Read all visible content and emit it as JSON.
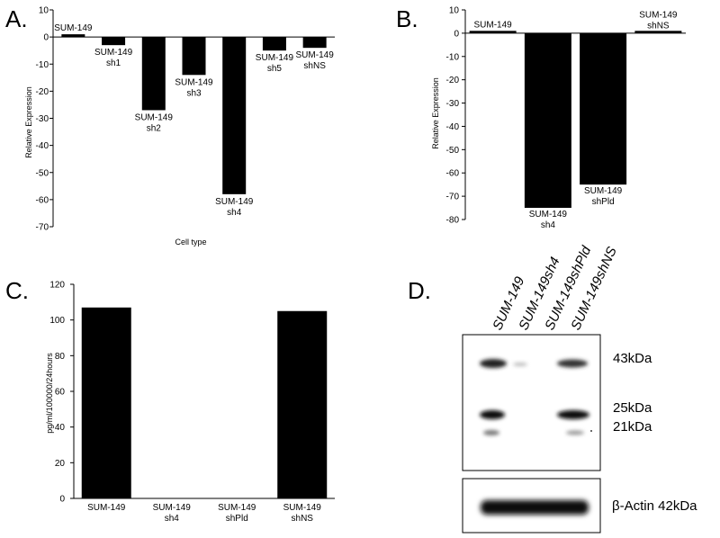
{
  "chart_data": [
    {
      "panel": "A.",
      "type": "bar",
      "categories": [
        "SUM-149",
        "SUM-149 sh1",
        "SUM-149 sh2",
        "SUM-149 sh3",
        "SUM-149 sh4",
        "SUM-149 sh5",
        "SUM-149 shNS"
      ],
      "category_lines": [
        [
          "SUM-149"
        ],
        [
          "SUM-149",
          "sh1"
        ],
        [
          "SUM-149",
          "sh2"
        ],
        [
          "SUM-149",
          "sh3"
        ],
        [
          "SUM-149",
          "sh4"
        ],
        [
          "SUM-149",
          "sh5"
        ],
        [
          "SUM-149",
          "shNS"
        ]
      ],
      "values": [
        1,
        -3,
        -27,
        -14,
        -58,
        -5,
        -4
      ],
      "ylim": [
        -70,
        10
      ],
      "yticks": [
        10,
        0,
        -10,
        -20,
        -30,
        -40,
        -50,
        -60,
        -70
      ],
      "xlabel": "Cell type",
      "ylabel": "Relative Expression"
    },
    {
      "panel": "B.",
      "type": "bar",
      "categories": [
        "SUM-149",
        "SUM-149 sh4",
        "SUM-149 shPld",
        "SUM-149 shNS"
      ],
      "category_lines": [
        [
          "SUM-149"
        ],
        [
          "SUM-149",
          "sh4"
        ],
        [
          "SUM-149",
          "shPld"
        ],
        [
          "SUM-149",
          "shNS"
        ]
      ],
      "values": [
        1,
        -75,
        -65,
        1
      ],
      "ylim": [
        -80,
        10
      ],
      "yticks": [
        10,
        0,
        -10,
        -20,
        -30,
        -40,
        -50,
        -60,
        -70,
        -80
      ],
      "xlabel": "",
      "ylabel": "Relative Expression"
    },
    {
      "panel": "C.",
      "type": "bar",
      "categories": [
        "SUM-149",
        "SUM-149 sh4",
        "SUM-149 shPld",
        "SUM-149 shNS"
      ],
      "category_lines": [
        [
          "SUM-149"
        ],
        [
          "SUM-149",
          "sh4"
        ],
        [
          "SUM-149",
          "shPld"
        ],
        [
          "SUM-149",
          "shNS"
        ]
      ],
      "values": [
        107,
        0,
        0,
        105
      ],
      "ylim": [
        0,
        120
      ],
      "yticks": [
        0,
        20,
        40,
        60,
        80,
        100,
        120
      ],
      "xlabel": "",
      "ylabel": "pg/ml/100000/24hours"
    }
  ],
  "blot": {
    "panel": "D.",
    "lanes": [
      "SUM-149",
      "SUM-149sh4",
      "SUM-149shPld",
      "SUM-149shNS"
    ],
    "markers": [
      "43kDa",
      "25kDa",
      "21kDa"
    ],
    "actin_label": "β-Actin 42kDa"
  }
}
